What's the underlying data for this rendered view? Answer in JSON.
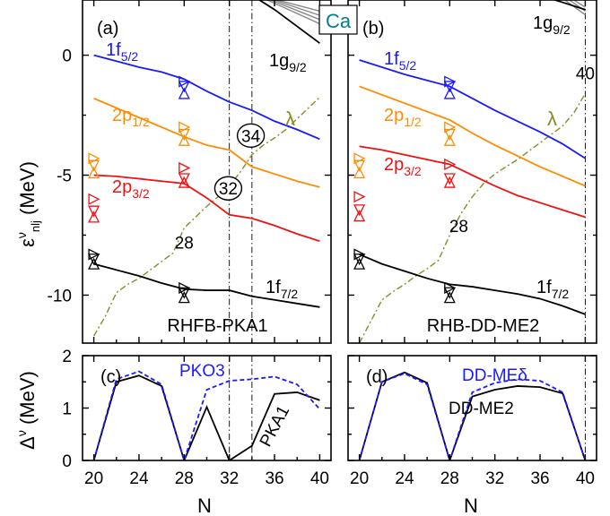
{
  "chart_data": {
    "type": "line",
    "element_label": "Ca",
    "x_axis": {
      "label": "N",
      "range": [
        19,
        41
      ],
      "ticks": [
        20,
        24,
        28,
        32,
        36,
        40
      ]
    },
    "top_y_axis": {
      "label_main": "ε",
      "label_sup": "ν",
      "label_sub": "nlj",
      "unit": "(MeV)",
      "range": [
        -12,
        2.3
      ],
      "ticks": [
        0,
        -5,
        -10
      ]
    },
    "bottom_y_axis": {
      "label_main": "Δ",
      "label_sup": "ν",
      "unit": "(MeV)",
      "range": [
        0,
        2
      ],
      "ticks": [
        0,
        1,
        2
      ]
    },
    "colors": {
      "1f5/2": "#1a1aff",
      "2p1/2": "#ff8c00",
      "2p3/2": "#ee1111",
      "1f7/2": "#000000",
      "lambda": "#8a8a28",
      "dashed": "#1a1aff"
    },
    "panels": [
      {
        "id": "a",
        "tag": "(a)",
        "model": "RHFB-PKA1",
        "vlines": [
          32,
          34
        ],
        "magic_numbers": [
          {
            "text": "34",
            "x": 33.9,
            "y": -3.35,
            "circled": true
          },
          {
            "text": "32",
            "x": 31.9,
            "y": -5.55,
            "circled": true
          },
          {
            "text": "28",
            "x": 28.0,
            "y": -7.8,
            "circled": false
          }
        ],
        "series": [
          {
            "level": "1f",
            "sub": "5/2",
            "color": "#1a1aff",
            "x": [
              20,
              22,
              24,
              26,
              28,
              30,
              32,
              34,
              36,
              38,
              40
            ],
            "y": [
              0.0,
              -0.25,
              -0.5,
              -0.7,
              -1.0,
              -1.5,
              -1.95,
              -2.3,
              -2.75,
              -3.1,
              -3.5
            ]
          },
          {
            "level": "2p",
            "sub": "1/2",
            "color": "#ff8c00",
            "x": [
              20,
              22,
              24,
              26,
              28,
              30,
              32,
              34,
              36,
              38,
              40
            ],
            "y": [
              -1.8,
              -2.2,
              -2.6,
              -3.0,
              -3.4,
              -3.75,
              -3.95,
              -4.65,
              -4.95,
              -5.25,
              -5.5
            ]
          },
          {
            "level": "2p",
            "sub": "3/2",
            "color": "#ee1111",
            "x": [
              20,
              22,
              24,
              26,
              28,
              30,
              32,
              34,
              36,
              38,
              40
            ],
            "y": [
              -5.0,
              -5.05,
              -5.15,
              -5.25,
              -5.35,
              -5.95,
              -6.65,
              -6.8,
              -7.1,
              -7.45,
              -7.75
            ]
          },
          {
            "level": "1f",
            "sub": "7/2",
            "color": "#000000",
            "x": [
              20,
              22,
              24,
              26,
              28,
              30,
              32,
              34,
              36,
              38,
              40
            ],
            "y": [
              -8.7,
              -8.95,
              -9.2,
              -9.5,
              -9.75,
              -9.8,
              -9.8,
              -10.05,
              -10.2,
              -10.35,
              -10.5
            ]
          },
          {
            "level": "1g",
            "sub": "9/2",
            "color": "#000000",
            "x": [
              34,
              36,
              38,
              40
            ],
            "y": [
              2.5,
              1.9,
              1.2,
              0.5
            ]
          }
        ],
        "lambda": {
          "label": "λ",
          "x": [
            20,
            21,
            22,
            23,
            24,
            25,
            26,
            27,
            28,
            29,
            30,
            31,
            32,
            33,
            34,
            35,
            36,
            37,
            38,
            39,
            40
          ],
          "y": [
            -11.7,
            -10.9,
            -9.9,
            -9.55,
            -9.3,
            -8.95,
            -8.6,
            -8.25,
            -7.2,
            -6.75,
            -6.3,
            -5.9,
            -5.45,
            -4.85,
            -4.15,
            -3.75,
            -3.45,
            -3.1,
            -2.65,
            -2.2,
            -1.75
          ]
        }
      },
      {
        "id": "b",
        "tag": "(b)",
        "model": "RHB-DD-ME2",
        "vlines": [
          40
        ],
        "magic_numbers": [
          {
            "text": "40",
            "x": 40.0,
            "y": -0.75,
            "circled": false
          },
          {
            "text": "28",
            "x": 28.8,
            "y": -7.1,
            "circled": false
          }
        ],
        "series": [
          {
            "level": "1f",
            "sub": "5/2",
            "color": "#1a1aff",
            "x": [
              20,
              22,
              24,
              26,
              28,
              30,
              32,
              34,
              36,
              38,
              40
            ],
            "y": [
              -0.2,
              -0.5,
              -0.8,
              -1.05,
              -1.3,
              -1.8,
              -2.3,
              -2.75,
              -3.2,
              -3.7,
              -4.3
            ]
          },
          {
            "level": "2p",
            "sub": "1/2",
            "color": "#ff8c00",
            "x": [
              20,
              22,
              24,
              26,
              28,
              30,
              32,
              34,
              36,
              38,
              40
            ],
            "y": [
              -1.3,
              -1.65,
              -2.0,
              -2.35,
              -2.7,
              -3.25,
              -3.75,
              -4.2,
              -4.65,
              -5.05,
              -5.45
            ]
          },
          {
            "level": "2p",
            "sub": "3/2",
            "color": "#ee1111",
            "x": [
              20,
              22,
              24,
              26,
              28,
              30,
              32,
              34,
              36,
              38,
              40
            ],
            "y": [
              -3.8,
              -3.95,
              -4.15,
              -4.35,
              -4.55,
              -5.0,
              -5.45,
              -5.85,
              -6.15,
              -6.45,
              -6.75
            ]
          },
          {
            "level": "1f",
            "sub": "7/2",
            "color": "#000000",
            "x": [
              20,
              22,
              24,
              26,
              28,
              30,
              32,
              34,
              36,
              38,
              40
            ],
            "y": [
              -8.3,
              -8.7,
              -9.0,
              -9.3,
              -9.55,
              -9.65,
              -9.8,
              -9.95,
              -10.15,
              -10.45,
              -10.8
            ]
          },
          {
            "level": "1g",
            "sub": "9/2",
            "color": "#000000",
            "x": [
              36,
              38,
              40
            ],
            "y": [
              2.5,
              2.2,
              1.9
            ]
          }
        ],
        "lambda": {
          "label": "λ",
          "x": [
            20,
            21,
            22,
            23,
            24,
            25,
            26,
            27,
            28,
            29,
            30,
            31,
            32,
            33,
            34,
            35,
            36,
            37,
            38,
            39,
            40
          ],
          "y": [
            -12.0,
            -11.1,
            -10.2,
            -9.85,
            -9.55,
            -9.2,
            -8.9,
            -8.55,
            -7.5,
            -6.6,
            -5.9,
            -5.35,
            -4.95,
            -4.65,
            -4.35,
            -4.0,
            -3.65,
            -3.3,
            -2.95,
            -2.4,
            -1.6
          ]
        }
      },
      {
        "id": "c",
        "tag": "(c)",
        "vlines": [
          32,
          34
        ],
        "series": [
          {
            "name": "PKA1",
            "style": "solid",
            "color": "#000000",
            "x": [
              20,
              22,
              24,
              26,
              28,
              30,
              32,
              34,
              36,
              38,
              40
            ],
            "y": [
              0,
              1.5,
              1.62,
              1.42,
              0,
              1.02,
              0,
              0.28,
              1.27,
              1.3,
              1.15
            ]
          },
          {
            "name": "PKO3",
            "style": "dashed",
            "color": "#1a1aff",
            "x": [
              20,
              22,
              24,
              26,
              28,
              30,
              32,
              34,
              36,
              38,
              40
            ],
            "y": [
              0,
              1.55,
              1.7,
              1.45,
              0,
              1.35,
              1.52,
              1.55,
              1.6,
              1.45,
              0.98
            ]
          }
        ]
      },
      {
        "id": "d",
        "tag": "(d)",
        "vlines": [
          40
        ],
        "series": [
          {
            "name": "DD-ME2",
            "style": "solid",
            "color": "#000000",
            "x": [
              20,
              22,
              24,
              26,
              28,
              30,
              32,
              34,
              36,
              38,
              40
            ],
            "y": [
              0,
              1.5,
              1.68,
              1.48,
              0,
              1.22,
              1.35,
              1.42,
              1.4,
              1.28,
              0
            ]
          },
          {
            "name": "DD-MEδ",
            "style": "dashed",
            "color": "#1a1aff",
            "x": [
              20,
              22,
              24,
              26,
              28,
              30,
              32,
              34,
              36,
              38,
              40
            ],
            "y": [
              0,
              1.5,
              1.66,
              1.45,
              0,
              1.3,
              1.48,
              1.55,
              1.52,
              1.3,
              0
            ]
          }
        ]
      }
    ]
  }
}
